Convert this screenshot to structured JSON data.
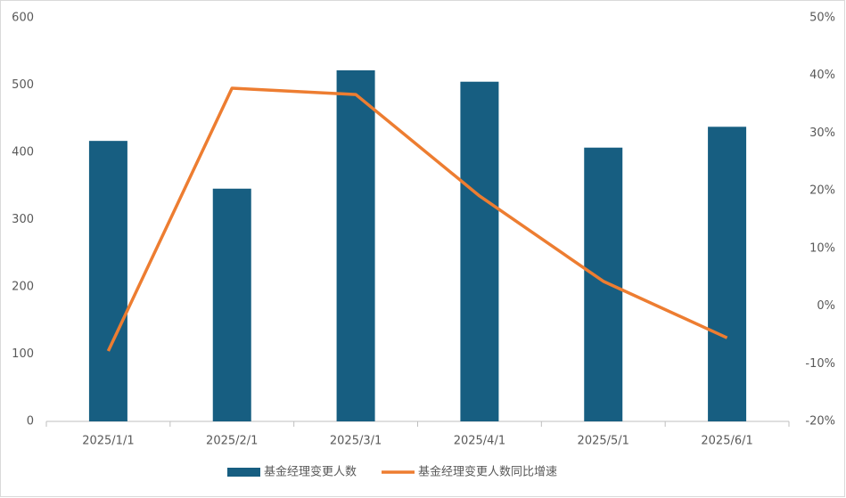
{
  "chart_data": {
    "type": "combo",
    "categories": [
      "2025/1/1",
      "2025/2/1",
      "2025/3/1",
      "2025/4/1",
      "2025/5/1",
      "2025/6/1"
    ],
    "series": [
      {
        "name": "基金经理变更人数",
        "type": "bar",
        "color": "#175e81",
        "values": [
          417,
          346,
          522,
          505,
          407,
          438
        ]
      },
      {
        "name": "基金经理变更人数同比增速",
        "type": "line",
        "axis": "y2",
        "color": "#ed7d31",
        "values": [
          -7.8,
          37.8,
          36.7,
          19.1,
          4.3,
          -5.5
        ]
      }
    ],
    "ylim": [
      0,
      600
    ],
    "yticks": [
      0,
      100,
      200,
      300,
      400,
      500,
      600
    ],
    "y2lim": [
      -20,
      50
    ],
    "y2ticks": [
      {
        "value": -20,
        "label": "-20%"
      },
      {
        "value": -10,
        "label": "-10%"
      },
      {
        "value": 0,
        "label": "0%"
      },
      {
        "value": 10,
        "label": "10%"
      },
      {
        "value": 20,
        "label": "20%"
      },
      {
        "value": 30,
        "label": "30%"
      },
      {
        "value": 40,
        "label": "40%"
      },
      {
        "value": 50,
        "label": "50%"
      }
    ],
    "grid": false,
    "legend": "bottom"
  }
}
